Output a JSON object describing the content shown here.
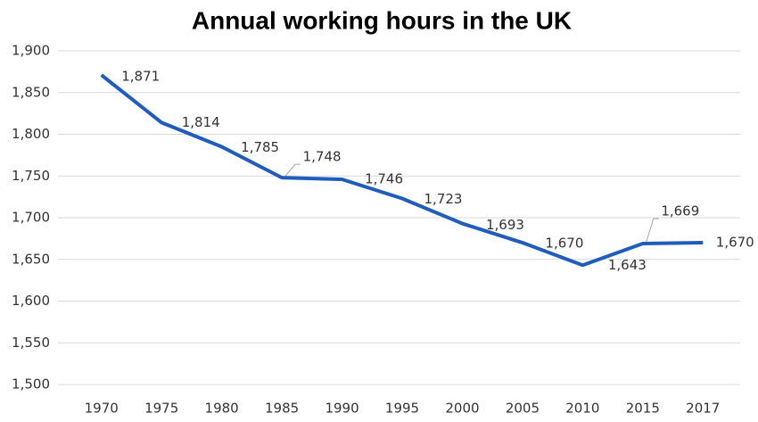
{
  "chart_data": {
    "type": "line",
    "title": "Annual working hours in the UK",
    "categories": [
      "1970",
      "1975",
      "1980",
      "1985",
      "1990",
      "1995",
      "2000",
      "2005",
      "2010",
      "2015",
      "2017"
    ],
    "series": [
      {
        "name": "Annual working hours",
        "color": "#1f5cbd",
        "values": [
          1871,
          1814,
          1785,
          1748,
          1746,
          1723,
          1693,
          1670,
          1643,
          1669,
          1670
        ],
        "value_labels": [
          "1,871",
          "1,814",
          "1,785",
          "1,748",
          "1,746",
          "1,723",
          "1,693",
          "1,670",
          "1,643",
          "1,669",
          "1,670"
        ]
      }
    ],
    "ylim": [
      1500,
      1900
    ],
    "yticks": [
      {
        "value": 1500,
        "label": "1,500"
      },
      {
        "value": 1550,
        "label": "1,550"
      },
      {
        "value": 1600,
        "label": "1,600"
      },
      {
        "value": 1650,
        "label": "1,650"
      },
      {
        "value": 1700,
        "label": "1,700"
      },
      {
        "value": 1750,
        "label": "1,750"
      },
      {
        "value": 1800,
        "label": "1,800"
      },
      {
        "value": 1850,
        "label": "1,850"
      },
      {
        "value": 1900,
        "label": "1,900"
      }
    ],
    "grid": true
  }
}
